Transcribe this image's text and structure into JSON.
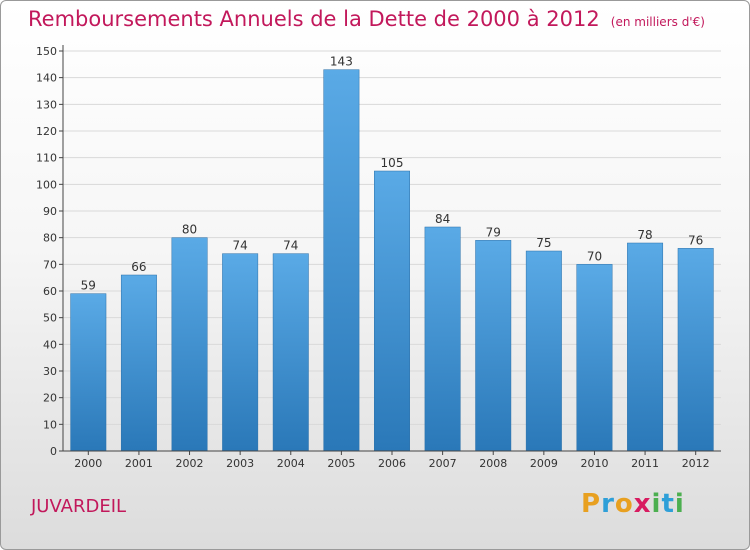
{
  "title": "Remboursements Annuels de la Dette de 2000 à 2012",
  "subtitle": "(en milliers d'€)",
  "commune": "JUVARDEIL",
  "logo": {
    "text": "Proxiti",
    "letters": [
      "P",
      "r",
      "o",
      "x",
      "i",
      "t",
      "i"
    ],
    "colors": [
      "#e8a020",
      "#2e9fd8",
      "#e8a020",
      "#d81b60",
      "#4caf50",
      "#2e9fd8",
      "#4caf50"
    ]
  },
  "colors": {
    "bar_top": "#5aaae6",
    "bar_bottom": "#2a78b8",
    "title": "#c2185b"
  },
  "chart_data": {
    "type": "bar",
    "categories": [
      "2000",
      "2001",
      "2002",
      "2003",
      "2004",
      "2005",
      "2006",
      "2007",
      "2008",
      "2009",
      "2010",
      "2011",
      "2012"
    ],
    "values": [
      59,
      66,
      80,
      74,
      74,
      143,
      105,
      84,
      79,
      75,
      70,
      78,
      76
    ],
    "ylim": [
      0,
      150
    ],
    "yticks": [
      0,
      10,
      20,
      30,
      40,
      50,
      60,
      70,
      80,
      90,
      100,
      110,
      120,
      130,
      140,
      150
    ],
    "grid": true,
    "data_labels": true
  }
}
